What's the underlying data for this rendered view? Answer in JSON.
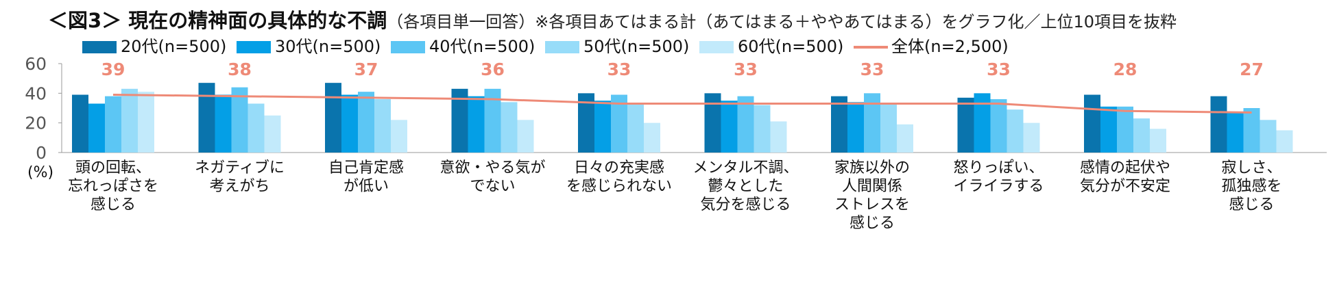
{
  "title": {
    "main": "＜図3＞ 現在の精神面の具体的な不調",
    "note": "（各項目単一回答）※各項目あてはまる計（あてはまる＋ややあてはまる）をグラフ化／上位10項目を抜粋"
  },
  "chart_data": {
    "type": "bar",
    "title": "現在の精神面の具体的な不調",
    "ylabel": "(%)",
    "ylim": [
      0,
      60
    ],
    "yticks": [
      0,
      20,
      40,
      60
    ],
    "legend_position": "top",
    "categories": [
      [
        "頭の回転、",
        "忘れっぽさを",
        "感じる"
      ],
      [
        "ネガティブに",
        "考えがち"
      ],
      [
        "自己肯定感",
        "が低い"
      ],
      [
        "意欲・やる気が",
        "でない"
      ],
      [
        "日々の充実感",
        "を感じられない"
      ],
      [
        "メンタル不調、",
        "鬱々とした",
        "気分を感じる"
      ],
      [
        "家族以外の",
        "人間関係",
        "ストレスを",
        "感じる"
      ],
      [
        "怒りっぽい、",
        "イライラする"
      ],
      [
        "感情の起伏や",
        "気分が不安定"
      ],
      [
        "寂しさ、",
        "孤独感を",
        "感じる"
      ]
    ],
    "series": [
      {
        "name": "20代(n=500)",
        "color": "#0a74ad",
        "values": [
          39,
          47,
          47,
          43,
          40,
          40,
          38,
          37,
          39,
          38
        ]
      },
      {
        "name": "30代(n=500)",
        "color": "#049fe6",
        "values": [
          33,
          39,
          39,
          38,
          35,
          35,
          34,
          40,
          31,
          27
        ]
      },
      {
        "name": "40代(n=500)",
        "color": "#5cc6f4",
        "values": [
          38,
          44,
          41,
          43,
          39,
          38,
          40,
          36,
          31,
          30
        ]
      },
      {
        "name": "50代(n=500)",
        "color": "#97dcf9",
        "values": [
          43,
          33,
          36,
          34,
          33,
          32,
          33,
          29,
          23,
          22
        ]
      },
      {
        "name": "60代(n=500)",
        "color": "#c2eafb",
        "values": [
          41,
          25,
          22,
          22,
          20,
          21,
          19,
          20,
          16,
          15
        ]
      }
    ],
    "line": {
      "name": "全体(n=2,500)",
      "color": "#ee8a77",
      "values": [
        39,
        38,
        37,
        36,
        33,
        33,
        33,
        33,
        28,
        27
      ]
    }
  }
}
